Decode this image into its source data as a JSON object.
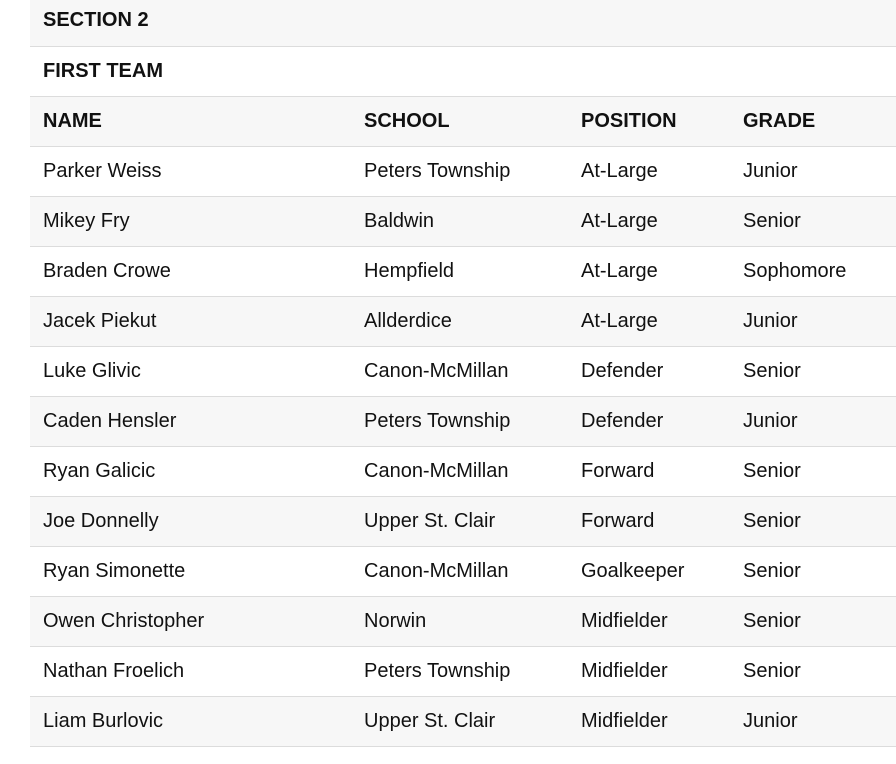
{
  "section_title": "SECTION 2",
  "team_title": "FIRST TEAM",
  "headers": [
    "NAME",
    "SCHOOL",
    "POSITION",
    "GRADE"
  ],
  "rows": [
    [
      "Parker Weiss",
      "Peters Township",
      "At-Large",
      "Junior"
    ],
    [
      "Mikey Fry",
      "Baldwin",
      "At-Large",
      "Senior"
    ],
    [
      "Braden Crowe",
      "Hempfield",
      "At-Large",
      "Sophomore"
    ],
    [
      "Jacek Piekut",
      "Allderdice",
      "At-Large",
      "Junior"
    ],
    [
      "Luke Glivic",
      "Canon-McMillan",
      "Defender",
      "Senior"
    ],
    [
      "Caden Hensler",
      "Peters Township",
      "Defender",
      "Junior"
    ],
    [
      "Ryan Galicic",
      "Canon-McMillan",
      "Forward",
      "Senior"
    ],
    [
      "Joe Donnelly",
      "Upper St. Clair",
      "Forward",
      "Senior"
    ],
    [
      "Ryan Simonette",
      "Canon-McMillan",
      "Goalkeeper",
      "Senior"
    ],
    [
      "Owen Christopher",
      "Norwin",
      "Midfielder",
      "Senior"
    ],
    [
      "Nathan Froelich",
      "Peters Township",
      "Midfielder",
      "Senior"
    ],
    [
      "Liam Burlovic",
      "Upper St. Clair",
      "Midfielder",
      "Junior"
    ]
  ]
}
